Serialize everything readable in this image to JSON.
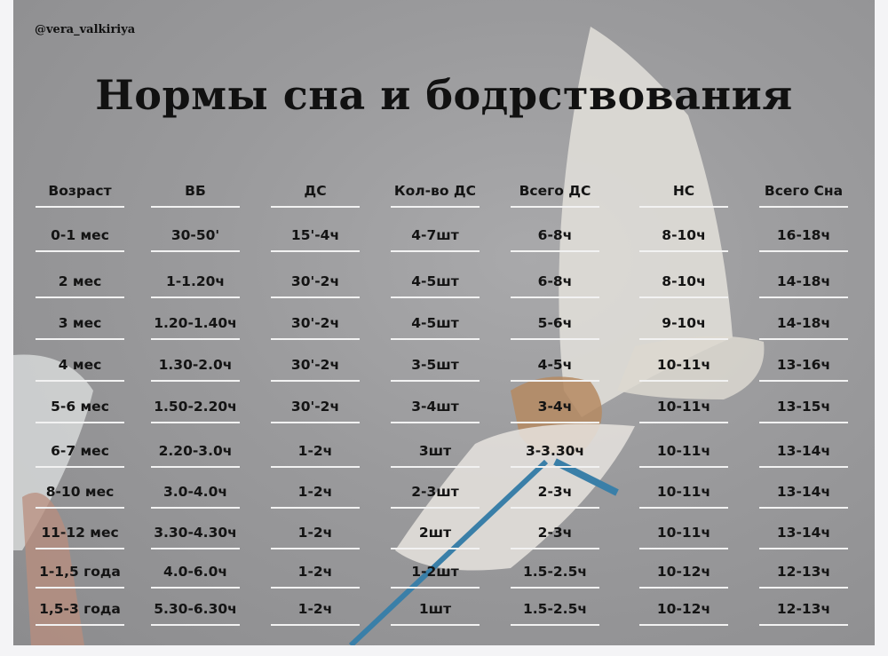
{
  "handle": "@vera_valkiriya",
  "title": "Нормы сна и бодрствования",
  "table": {
    "headers": [
      "Возраст",
      "ВБ",
      "ДС",
      "Кол-во ДС",
      "Всего ДС",
      "НС",
      "Всего Сна"
    ],
    "rows": [
      [
        "0-1 мес",
        "30-50'",
        "15'-4ч",
        "4-7шт",
        "6-8ч",
        "8-10ч",
        "16-18ч"
      ],
      [
        "2 мес",
        "1-1.20ч",
        "30'-2ч",
        "4-5шт",
        "6-8ч",
        "8-10ч",
        "14-18ч"
      ],
      [
        "3 мес",
        "1.20-1.40ч",
        "30'-2ч",
        "4-5шт",
        "5-6ч",
        "9-10ч",
        "14-18ч"
      ],
      [
        "4 мес",
        "1.30-2.0ч",
        "30'-2ч",
        "3-5шт",
        "4-5ч",
        "10-11ч",
        "13-16ч"
      ],
      [
        "5-6 мес",
        "1.50-2.20ч",
        "30'-2ч",
        "3-4шт",
        "3-4ч",
        "10-11ч",
        "13-15ч"
      ],
      [
        "6-7 мес",
        "2.20-3.0ч",
        "1-2ч",
        "3шт",
        "3-3.30ч",
        "10-11ч",
        "13-14ч"
      ],
      [
        "8-10 мес",
        "3.0-4.0ч",
        "1-2ч",
        "2-3шт",
        "2-3ч",
        "10-11ч",
        "13-14ч"
      ],
      [
        "11-12 мес",
        "3.30-4.30ч",
        "1-2ч",
        "2шт",
        "2-3ч",
        "10-11ч",
        "13-14ч"
      ],
      [
        "1-1,5 года",
        "4.0-6.0ч",
        "1-2ч",
        "1-2шт",
        "1.5-2.5ч",
        "10-12ч",
        "12-13ч"
      ],
      [
        "1,5-3 года",
        "5.30-6.30ч",
        "1-2ч",
        "1шт",
        "1.5-2.5ч",
        "10-12ч",
        "12-13ч"
      ]
    ]
  },
  "colors": {
    "background": "#9a9a9c",
    "text": "#141414",
    "rule": "#f2f2f2",
    "ribbon": "#3a7fa8"
  }
}
